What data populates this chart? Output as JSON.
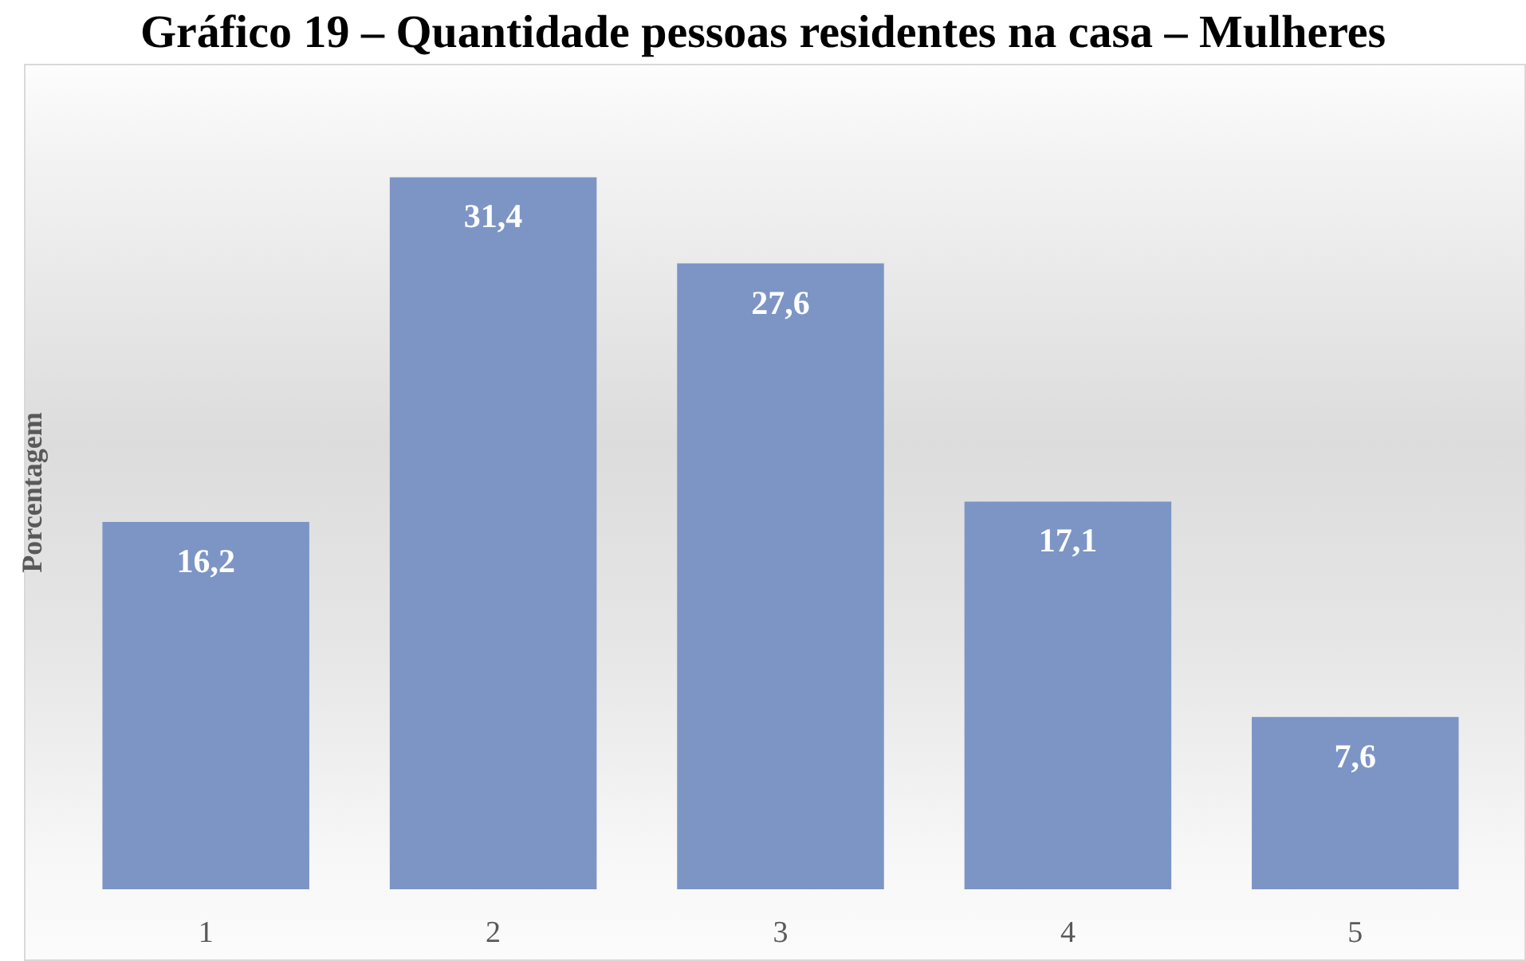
{
  "chart_data": {
    "type": "bar",
    "title": "Gráfico 19 – Quantidade pessoas residentes na casa – Mulheres",
    "ylabel": "Porcentagem",
    "categories": [
      "1",
      "2",
      "3",
      "4",
      "5"
    ],
    "values": [
      16.2,
      31.4,
      27.6,
      17.1,
      7.6
    ],
    "color": "#7c95c5",
    "value_labels": [
      "16,2",
      "31,4",
      "27,6",
      "17,1",
      "7,6"
    ],
    "tick_labels": "x",
    "grid": false
  }
}
